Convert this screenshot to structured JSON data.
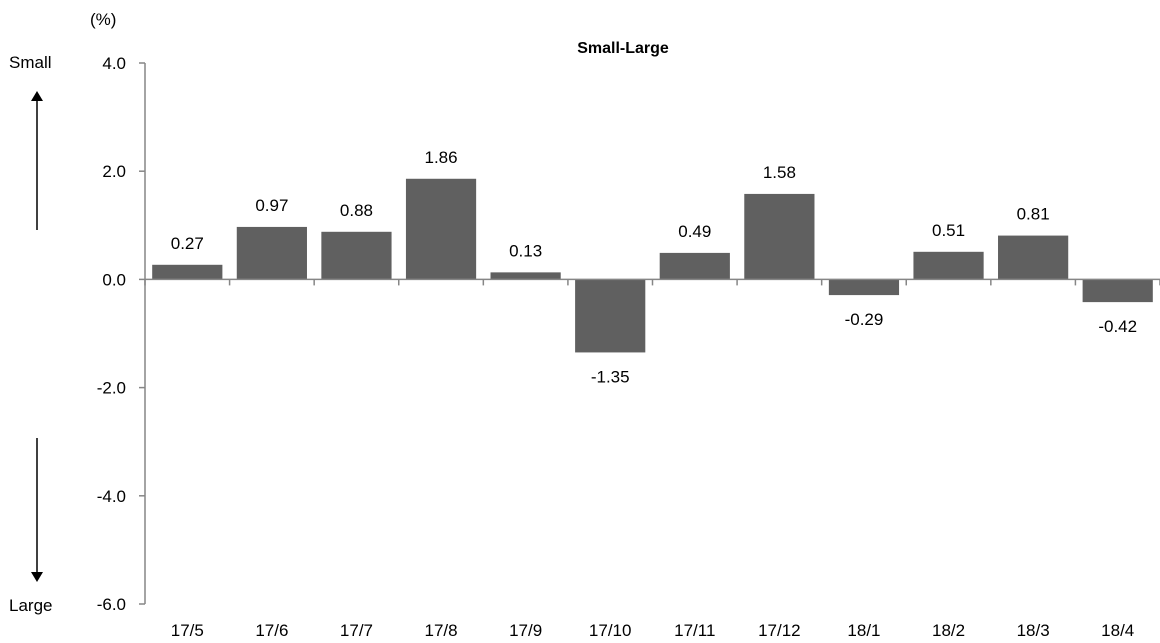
{
  "chart_data": {
    "type": "bar",
    "title": "Small-Large",
    "unit_label": "(%)",
    "xlabel": "",
    "ylabel": "",
    "categories": [
      "17/5",
      "17/6",
      "17/7",
      "17/8",
      "17/9",
      "17/10",
      "17/11",
      "17/12",
      "18/1",
      "18/2",
      "18/3",
      "18/4"
    ],
    "values": [
      0.27,
      0.97,
      0.88,
      1.86,
      0.13,
      -1.35,
      0.49,
      1.58,
      -0.29,
      0.51,
      0.81,
      -0.42
    ],
    "value_labels": [
      "0.27",
      "0.97",
      "0.88",
      "1.86",
      "0.13",
      "-1.35",
      "0.49",
      "1.58",
      "-0.29",
      "0.51",
      "0.81",
      "-0.42"
    ],
    "ylim": [
      -6.0,
      4.0
    ],
    "yticks": [
      4.0,
      2.0,
      0.0,
      -2.0,
      -4.0,
      -6.0
    ],
    "ytick_labels": [
      "4.0",
      "2.0",
      "0.0",
      "-2.0",
      "-4.0",
      "-6.0"
    ],
    "grid": false,
    "legend": "none",
    "bar_color": "#606060",
    "axis_color": "#868686",
    "side_labels": {
      "top": "Small",
      "bottom": "Large"
    }
  }
}
